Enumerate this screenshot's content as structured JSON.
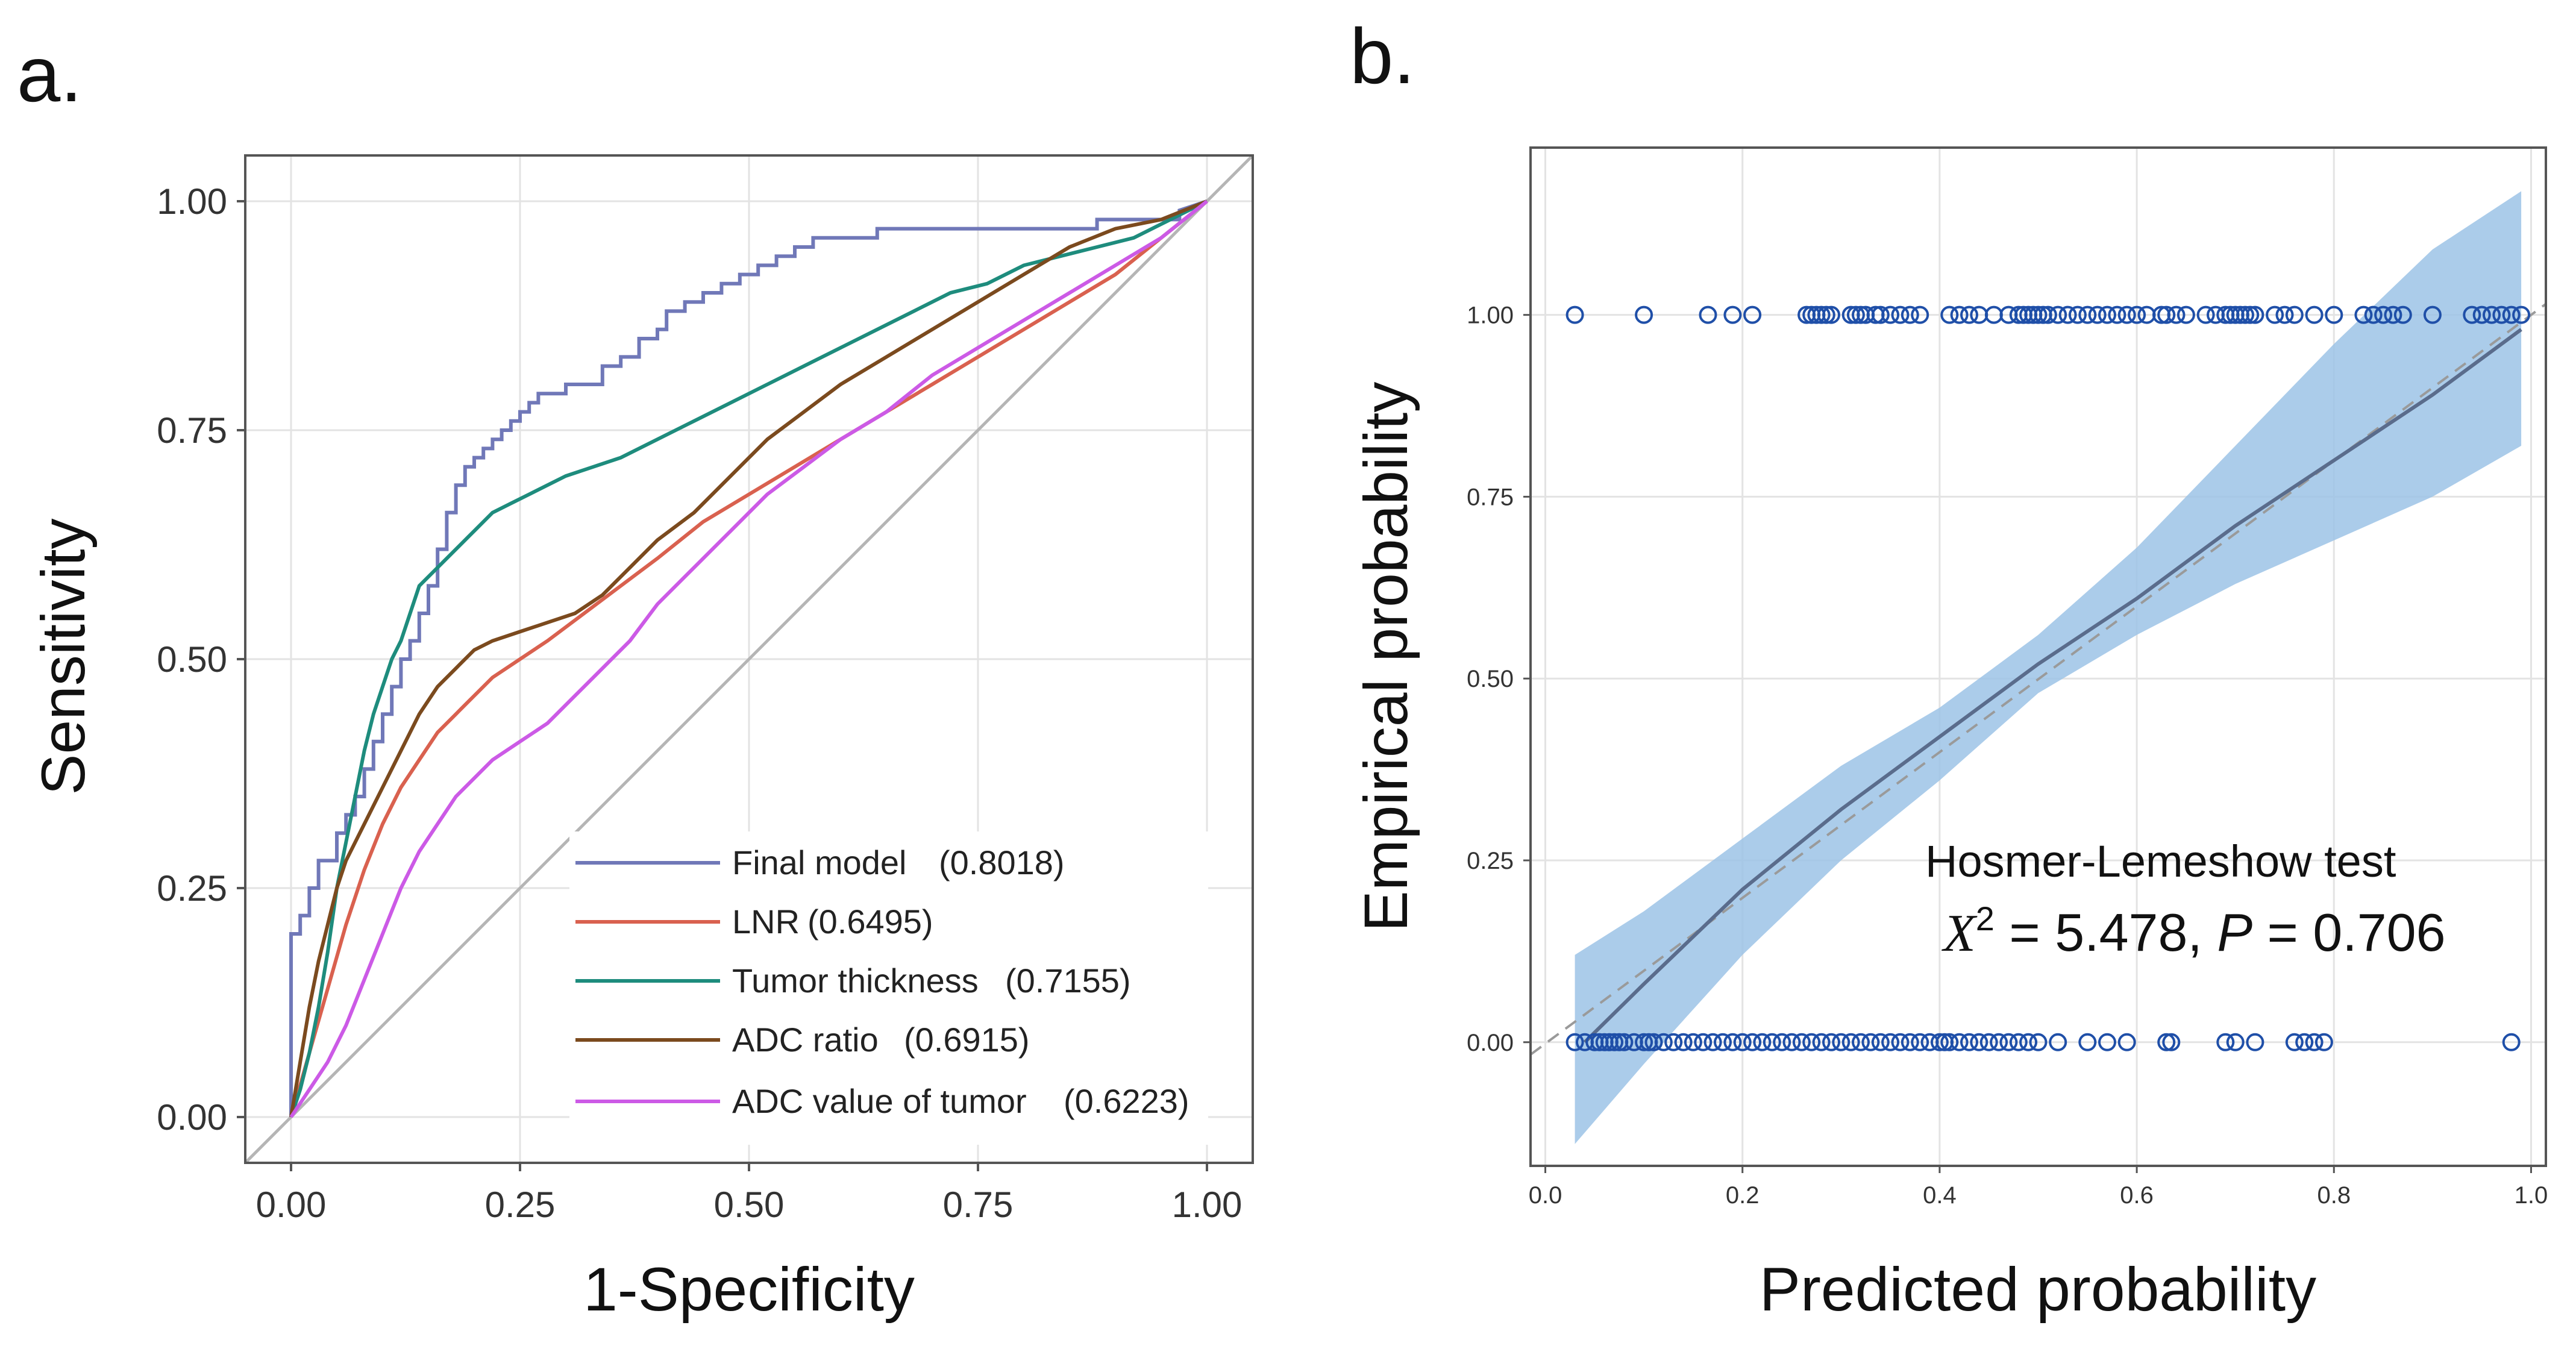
{
  "panels": {
    "a_label": "a.",
    "b_label": "b."
  },
  "chart_data": [
    {
      "type": "line",
      "title": "",
      "xlabel": "1-Specificity",
      "ylabel": "Sensitivity",
      "xlim": [
        -0.05,
        1.05
      ],
      "ylim": [
        -0.05,
        1.05
      ],
      "xticks": [
        "0.00",
        "0.25",
        "0.50",
        "0.75",
        "1.00"
      ],
      "yticks": [
        "0.00",
        "0.25",
        "0.50",
        "0.75",
        "1.00"
      ],
      "grid": true,
      "legend_position": "bottom-right",
      "reference_line": [
        [
          -0.05,
          -0.05
        ],
        [
          1.05,
          1.05
        ]
      ],
      "series": [
        {
          "name": "Final model (0.8018)",
          "label": "Final model",
          "auc": "(0.8018)",
          "color": "#7078b8",
          "x": [
            0.0,
            0.0,
            0.01,
            0.01,
            0.02,
            0.02,
            0.03,
            0.03,
            0.05,
            0.05,
            0.06,
            0.06,
            0.07,
            0.07,
            0.08,
            0.08,
            0.09,
            0.09,
            0.1,
            0.1,
            0.11,
            0.11,
            0.12,
            0.12,
            0.13,
            0.13,
            0.14,
            0.14,
            0.15,
            0.15,
            0.16,
            0.16,
            0.17,
            0.17,
            0.18,
            0.18,
            0.19,
            0.19,
            0.2,
            0.2,
            0.21,
            0.21,
            0.22,
            0.22,
            0.23,
            0.23,
            0.24,
            0.24,
            0.25,
            0.25,
            0.26,
            0.26,
            0.27,
            0.27,
            0.28,
            0.28,
            0.3,
            0.3,
            0.34,
            0.34,
            0.36,
            0.36,
            0.38,
            0.38,
            0.4,
            0.4,
            0.41,
            0.41,
            0.43,
            0.43,
            0.45,
            0.45,
            0.47,
            0.47,
            0.49,
            0.49,
            0.51,
            0.51,
            0.53,
            0.53,
            0.55,
            0.55,
            0.57,
            0.57,
            0.6,
            0.6,
            0.64,
            0.64,
            0.75,
            0.75,
            0.88,
            0.88,
            0.97,
            0.97,
            1.0
          ],
          "y": [
            0.0,
            0.2,
            0.2,
            0.22,
            0.22,
            0.25,
            0.25,
            0.28,
            0.28,
            0.31,
            0.31,
            0.33,
            0.33,
            0.35,
            0.35,
            0.38,
            0.38,
            0.41,
            0.41,
            0.44,
            0.44,
            0.47,
            0.47,
            0.5,
            0.5,
            0.52,
            0.52,
            0.55,
            0.55,
            0.58,
            0.58,
            0.62,
            0.62,
            0.66,
            0.66,
            0.69,
            0.69,
            0.71,
            0.71,
            0.72,
            0.72,
            0.73,
            0.73,
            0.74,
            0.74,
            0.75,
            0.75,
            0.76,
            0.76,
            0.77,
            0.77,
            0.78,
            0.78,
            0.79,
            0.79,
            0.79,
            0.79,
            0.8,
            0.8,
            0.82,
            0.82,
            0.83,
            0.83,
            0.85,
            0.85,
            0.86,
            0.86,
            0.88,
            0.88,
            0.89,
            0.89,
            0.9,
            0.9,
            0.91,
            0.91,
            0.92,
            0.92,
            0.93,
            0.93,
            0.94,
            0.94,
            0.95,
            0.95,
            0.96,
            0.96,
            0.96,
            0.96,
            0.97,
            0.97,
            0.97,
            0.97,
            0.98,
            0.98,
            0.99,
            1.0
          ]
        },
        {
          "name": "LNR (0.6495)",
          "label": "LNR",
          "auc": "(0.6495)",
          "color": "#d9614f",
          "x": [
            0.0,
            0.02,
            0.04,
            0.06,
            0.08,
            0.1,
            0.12,
            0.14,
            0.16,
            0.18,
            0.2,
            0.22,
            0.25,
            0.28,
            0.32,
            0.36,
            0.4,
            0.45,
            0.5,
            0.55,
            0.6,
            0.65,
            0.7,
            0.75,
            0.8,
            0.85,
            0.9,
            0.95,
            1.0
          ],
          "y": [
            0.0,
            0.07,
            0.14,
            0.21,
            0.27,
            0.32,
            0.36,
            0.39,
            0.42,
            0.44,
            0.46,
            0.48,
            0.5,
            0.52,
            0.55,
            0.58,
            0.61,
            0.65,
            0.68,
            0.71,
            0.74,
            0.77,
            0.8,
            0.83,
            0.86,
            0.89,
            0.92,
            0.96,
            1.0
          ]
        },
        {
          "name": "Tumor thickness (0.7155)",
          "label": "Tumor thickness",
          "auc": "(0.7155)",
          "color": "#1e8c7d",
          "x": [
            0.0,
            0.01,
            0.02,
            0.03,
            0.04,
            0.05,
            0.06,
            0.07,
            0.08,
            0.09,
            0.1,
            0.11,
            0.12,
            0.13,
            0.14,
            0.16,
            0.18,
            0.2,
            0.22,
            0.24,
            0.26,
            0.28,
            0.3,
            0.33,
            0.36,
            0.4,
            0.44,
            0.48,
            0.52,
            0.56,
            0.6,
            0.64,
            0.68,
            0.72,
            0.76,
            0.8,
            0.84,
            0.88,
            0.92,
            0.96,
            1.0
          ],
          "y": [
            0.0,
            0.03,
            0.07,
            0.12,
            0.18,
            0.25,
            0.3,
            0.35,
            0.4,
            0.44,
            0.47,
            0.5,
            0.52,
            0.55,
            0.58,
            0.6,
            0.62,
            0.64,
            0.66,
            0.67,
            0.68,
            0.69,
            0.7,
            0.71,
            0.72,
            0.74,
            0.76,
            0.78,
            0.8,
            0.82,
            0.84,
            0.86,
            0.88,
            0.9,
            0.91,
            0.93,
            0.94,
            0.95,
            0.96,
            0.98,
            1.0
          ]
        },
        {
          "name": "ADC ratio (0.6915)",
          "label": "ADC ratio",
          "auc": "(0.6915)",
          "color": "#7b4a1e",
          "x": [
            0.0,
            0.01,
            0.02,
            0.03,
            0.04,
            0.05,
            0.06,
            0.08,
            0.1,
            0.12,
            0.14,
            0.16,
            0.18,
            0.2,
            0.22,
            0.25,
            0.28,
            0.31,
            0.34,
            0.37,
            0.4,
            0.44,
            0.48,
            0.52,
            0.56,
            0.6,
            0.65,
            0.7,
            0.75,
            0.8,
            0.85,
            0.9,
            0.95,
            1.0
          ],
          "y": [
            0.0,
            0.06,
            0.12,
            0.17,
            0.21,
            0.25,
            0.28,
            0.32,
            0.36,
            0.4,
            0.44,
            0.47,
            0.49,
            0.51,
            0.52,
            0.53,
            0.54,
            0.55,
            0.57,
            0.6,
            0.63,
            0.66,
            0.7,
            0.74,
            0.77,
            0.8,
            0.83,
            0.86,
            0.89,
            0.92,
            0.95,
            0.97,
            0.98,
            1.0
          ]
        },
        {
          "name": "ADC value of tumor (0.6223)",
          "label": "ADC value of tumor",
          "auc": "(0.6223)",
          "color": "#cc5ae6",
          "x": [
            0.0,
            0.02,
            0.04,
            0.06,
            0.08,
            0.1,
            0.12,
            0.14,
            0.16,
            0.18,
            0.2,
            0.22,
            0.25,
            0.28,
            0.31,
            0.34,
            0.37,
            0.4,
            0.44,
            0.48,
            0.52,
            0.56,
            0.6,
            0.65,
            0.7,
            0.75,
            0.8,
            0.85,
            0.9,
            0.95,
            1.0
          ],
          "y": [
            0.0,
            0.03,
            0.06,
            0.1,
            0.15,
            0.2,
            0.25,
            0.29,
            0.32,
            0.35,
            0.37,
            0.39,
            0.41,
            0.43,
            0.46,
            0.49,
            0.52,
            0.56,
            0.6,
            0.64,
            0.68,
            0.71,
            0.74,
            0.77,
            0.81,
            0.84,
            0.87,
            0.9,
            0.93,
            0.96,
            1.0
          ]
        }
      ]
    },
    {
      "type": "scatter",
      "title": "",
      "xlabel": "Predicted probability",
      "ylabel": "Empirical probability",
      "xlim": [
        -0.015,
        1.015
      ],
      "ylim": [
        -0.17,
        1.23
      ],
      "xticks": [
        "0.0",
        "0.2",
        "0.4",
        "0.6",
        "0.8",
        "1.0"
      ],
      "yticks": [
        "0.00",
        "0.25",
        "0.50",
        "0.75",
        "1.00"
      ],
      "grid": true,
      "reference_line": [
        [
          -0.015,
          -0.017
        ],
        [
          1.015,
          1.015
        ]
      ],
      "smooth_line": {
        "color": "#5a6c8c",
        "x": [
          0.04,
          0.1,
          0.2,
          0.3,
          0.4,
          0.5,
          0.6,
          0.7,
          0.8,
          0.9,
          0.99
        ],
        "y": [
          0.0,
          0.08,
          0.21,
          0.32,
          0.42,
          0.52,
          0.61,
          0.71,
          0.8,
          0.89,
          0.98
        ]
      },
      "confidence_band": {
        "color": "#9cc3e6",
        "x": [
          0.03,
          0.1,
          0.2,
          0.3,
          0.4,
          0.5,
          0.6,
          0.7,
          0.8,
          0.9,
          0.99
        ],
        "upper": [
          0.12,
          0.18,
          0.28,
          0.38,
          0.46,
          0.56,
          0.68,
          0.82,
          0.96,
          1.09,
          1.17
        ],
        "lower": [
          -0.14,
          -0.03,
          0.12,
          0.25,
          0.36,
          0.48,
          0.56,
          0.63,
          0.69,
          0.75,
          0.82
        ]
      },
      "points": {
        "color": "#1f4fa8",
        "y1_x": [
          0.03,
          0.1,
          0.165,
          0.19,
          0.21,
          0.265,
          0.27,
          0.275,
          0.28,
          0.285,
          0.29,
          0.31,
          0.315,
          0.32,
          0.325,
          0.335,
          0.34,
          0.35,
          0.36,
          0.37,
          0.38,
          0.41,
          0.42,
          0.43,
          0.44,
          0.455,
          0.47,
          0.48,
          0.485,
          0.49,
          0.495,
          0.5,
          0.505,
          0.51,
          0.52,
          0.53,
          0.54,
          0.55,
          0.56,
          0.57,
          0.58,
          0.59,
          0.6,
          0.61,
          0.625,
          0.63,
          0.64,
          0.65,
          0.67,
          0.68,
          0.69,
          0.695,
          0.7,
          0.705,
          0.71,
          0.715,
          0.72,
          0.74,
          0.75,
          0.76,
          0.78,
          0.8,
          0.83,
          0.84,
          0.85,
          0.86,
          0.87,
          0.9,
          0.94,
          0.95,
          0.96,
          0.97,
          0.98,
          0.99
        ],
        "y0_x": [
          0.03,
          0.04,
          0.05,
          0.055,
          0.06,
          0.065,
          0.07,
          0.075,
          0.08,
          0.09,
          0.1,
          0.105,
          0.11,
          0.12,
          0.13,
          0.14,
          0.15,
          0.16,
          0.17,
          0.18,
          0.19,
          0.2,
          0.21,
          0.22,
          0.23,
          0.24,
          0.25,
          0.26,
          0.27,
          0.28,
          0.29,
          0.3,
          0.31,
          0.32,
          0.33,
          0.34,
          0.35,
          0.36,
          0.37,
          0.38,
          0.39,
          0.4,
          0.405,
          0.41,
          0.42,
          0.43,
          0.44,
          0.45,
          0.46,
          0.47,
          0.48,
          0.49,
          0.5,
          0.52,
          0.55,
          0.57,
          0.59,
          0.63,
          0.635,
          0.69,
          0.7,
          0.72,
          0.76,
          0.77,
          0.78,
          0.79,
          0.98
        ]
      },
      "annotations": {
        "hl_title": "Hosmer-Lemeshow  test",
        "chi_symbol": "X",
        "chi_sup": "2",
        "chi_value": " = 5.478, ",
        "p_symbol": "P",
        "p_value": " = 0.706"
      }
    }
  ]
}
